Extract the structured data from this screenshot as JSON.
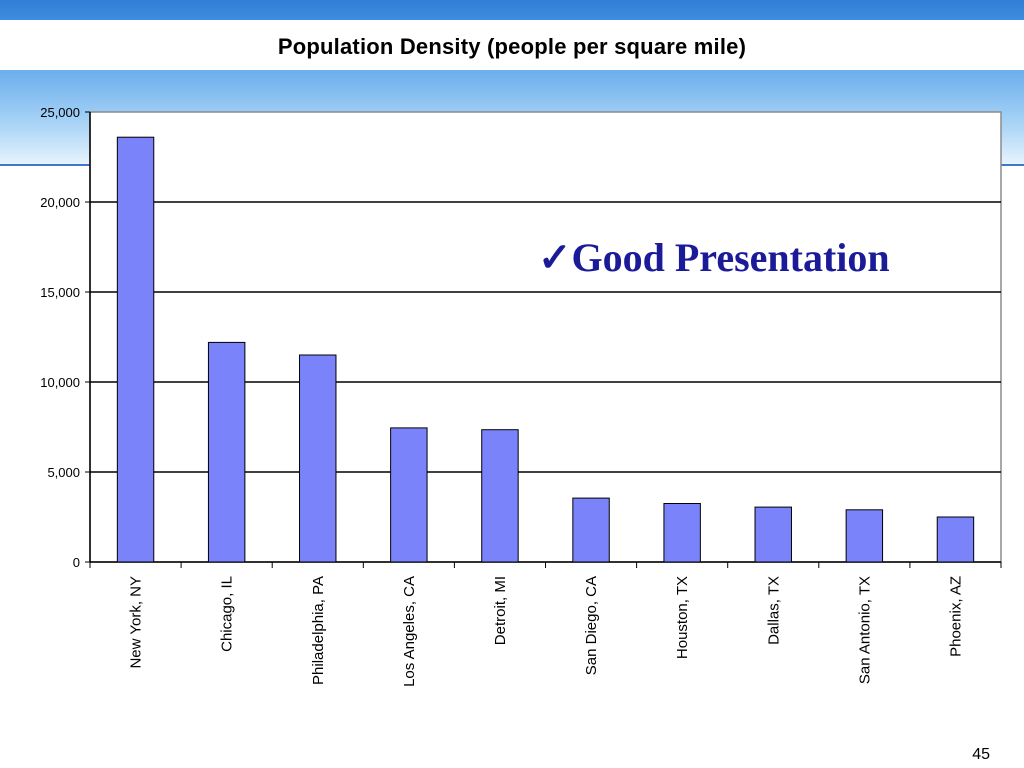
{
  "slide": {
    "annotation_check": "✓",
    "annotation_text": "Good Presentation",
    "page_number": "45"
  },
  "colors": {
    "bar_fill": "#7b83fb",
    "bar_stroke": "#000000",
    "annotation": "#1b1b9a",
    "banner": "#2f7fd8"
  },
  "chart_data": {
    "type": "bar",
    "title": "Population Density (people per square mile)",
    "xlabel": "",
    "ylabel": "",
    "categories": [
      "New York, NY",
      "Chicago, IL",
      "Philadelphia, PA",
      "Los Angeles, CA",
      "Detroit, MI",
      "San Diego, CA",
      "Houston, TX",
      "Dallas, TX",
      "San Antonio, TX",
      "Phoenix, AZ"
    ],
    "values": [
      23600,
      12200,
      11500,
      7450,
      7350,
      3550,
      3250,
      3050,
      2900,
      2500
    ],
    "ylim": [
      0,
      25000
    ],
    "yticks": [
      0,
      5000,
      10000,
      15000,
      20000,
      25000
    ],
    "ytick_labels": [
      "0",
      "5,000",
      "10,000",
      "15,000",
      "20,000",
      "25,000"
    ],
    "grid": true,
    "legend": "none"
  }
}
